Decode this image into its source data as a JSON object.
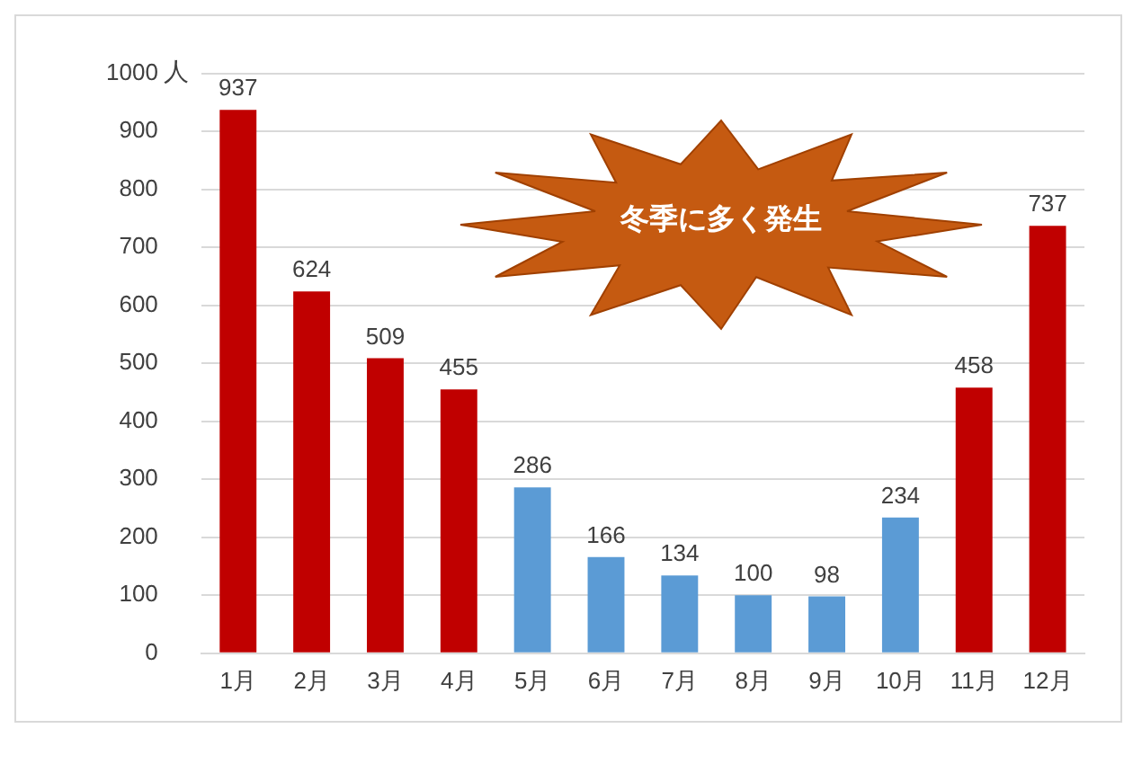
{
  "chart_data": {
    "type": "bar",
    "ylabel": "人",
    "annotations": [
      "冬季に多く発生"
    ],
    "categories": [
      "1月",
      "2月",
      "3月",
      "4月",
      "5月",
      "6月",
      "7月",
      "8月",
      "9月",
      "10月",
      "11月",
      "12月"
    ],
    "values": [
      937,
      624,
      509,
      455,
      286,
      166,
      134,
      100,
      98,
      234,
      458,
      737
    ],
    "colors": [
      "#c00000",
      "#c00000",
      "#c00000",
      "#c00000",
      "#5b9bd5",
      "#5b9bd5",
      "#5b9bd5",
      "#5b9bd5",
      "#5b9bd5",
      "#5b9bd5",
      "#c00000",
      "#c00000"
    ],
    "ylim": [
      0,
      1000
    ],
    "yticks": [
      0,
      100,
      200,
      300,
      400,
      500,
      600,
      700,
      800,
      900,
      1000
    ],
    "grid": "y",
    "data_labels": true,
    "legend": false
  }
}
